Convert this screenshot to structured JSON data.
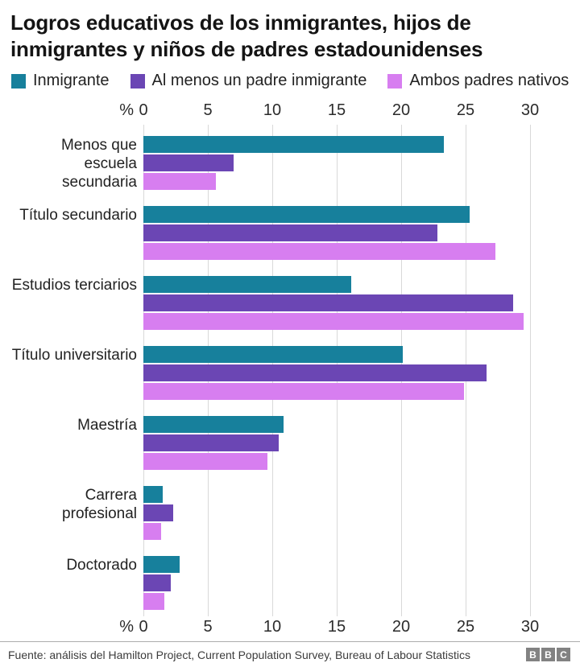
{
  "title": "Logros educativos de los inmigrantes, hijos de inmigrantes y niños de padres estadounidenses",
  "chart_data": {
    "type": "bar",
    "orientation": "horizontal",
    "title": "Logros educativos de los inmigrantes, hijos de inmigrantes y niños de padres estadounidenses",
    "xlabel": "%",
    "xticks": [
      0,
      5,
      10,
      15,
      20,
      25,
      30
    ],
    "xlim": [
      0,
      33
    ],
    "grid": "vertical",
    "legend_position": "top",
    "axis_labels_position": "top-and-bottom",
    "categories": [
      "Menos que escuela secundaria",
      "Título secundario",
      "Estudios terciarios",
      "Título universitario",
      "Maestría",
      "Carrera profesional",
      "Doctorado"
    ],
    "category_label_lines": [
      [
        "Menos que",
        "escuela",
        "secundaria"
      ],
      [
        "Título secundario"
      ],
      [
        "Estudios terciarios"
      ],
      [
        "Título universitario"
      ],
      [
        "Maestría"
      ],
      [
        "Carrera",
        "profesional"
      ],
      [
        "Doctorado"
      ]
    ],
    "series": [
      {
        "name": "Inmigrante",
        "color": "#17809c",
        "values": [
          23.3,
          25.3,
          16.1,
          20.1,
          10.9,
          1.5,
          2.8
        ]
      },
      {
        "name": "Al menos un padre inmigrante",
        "color": "#6b46b4",
        "values": [
          7.0,
          22.8,
          28.7,
          26.6,
          10.5,
          2.3,
          2.1
        ]
      },
      {
        "name": "Ambos padres nativos",
        "color": "#d77ef0",
        "values": [
          5.6,
          27.3,
          29.5,
          24.9,
          9.6,
          1.4,
          1.6
        ]
      }
    ]
  },
  "footer": {
    "source": "Fuente: análisis del Hamilton Project, Current Population Survey, Bureau of Labour Statistics",
    "logo_letters": [
      "B",
      "B",
      "C"
    ]
  }
}
